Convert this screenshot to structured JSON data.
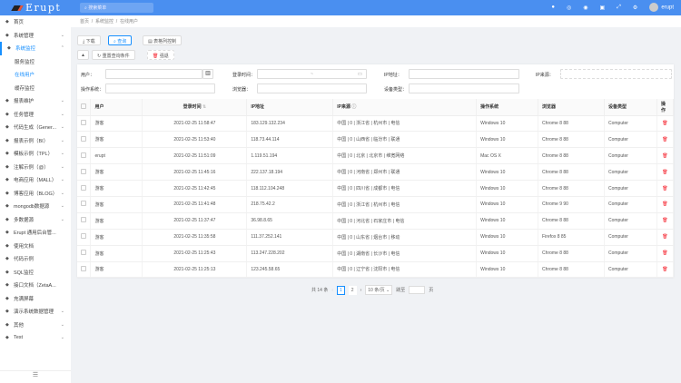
{
  "header": {
    "logo": "Erupt",
    "search_placeholder": "搜索菜单",
    "icons": [
      "qq-icon",
      "github-icon",
      "gitee-icon",
      "video-icon",
      "fullscreen-icon",
      "settings-icon"
    ],
    "user": "erupt"
  },
  "sidebar": {
    "items": [
      {
        "label": "首页",
        "icon": "home-icon",
        "arrow": false
      },
      {
        "label": "系统管理",
        "icon": "cogs-icon",
        "arrow": true
      },
      {
        "label": "系统监控",
        "icon": "monitor-icon",
        "arrow": true,
        "open": true
      },
      {
        "label": "服务监控",
        "sub": true
      },
      {
        "label": "在线用户",
        "sub": true,
        "current": true
      },
      {
        "label": "缓存监控",
        "sub": true
      },
      {
        "label": "报表维护",
        "icon": "table-icon",
        "arrow": true
      },
      {
        "label": "任务管理",
        "icon": "tasks-icon",
        "arrow": true
      },
      {
        "label": "代码生成（Gener...",
        "icon": "code-icon",
        "arrow": true
      },
      {
        "label": "报表示例（BI）",
        "icon": "chart-icon",
        "arrow": true
      },
      {
        "label": "模板示例（TPL）",
        "icon": "template-icon",
        "arrow": true
      },
      {
        "label": "注解示例（@）",
        "icon": "rocket-icon",
        "arrow": true
      },
      {
        "label": "电商应用（MALL）",
        "icon": "shop-icon",
        "arrow": true
      },
      {
        "label": "博客应用（BLOG）",
        "icon": "blog-icon",
        "arrow": true
      },
      {
        "label": "mongodb数据源",
        "icon": "leaf-icon",
        "arrow": true
      },
      {
        "label": "多数据源",
        "icon": "database-icon",
        "arrow": true
      },
      {
        "label": "Erupt 通用后台管...",
        "icon": "flask-icon",
        "arrow": false
      },
      {
        "label": "使用文档",
        "icon": "doc-icon",
        "arrow": false
      },
      {
        "label": "代码示例",
        "icon": "heart-icon",
        "arrow": false
      },
      {
        "label": "SQL监控",
        "icon": "search-icon",
        "arrow": false
      },
      {
        "label": "接口文档（ZetaA...",
        "icon": "api-icon",
        "arrow": false
      },
      {
        "label": "充满屏幕",
        "icon": "screen-icon",
        "arrow": false
      },
      {
        "label": "演示系统数据管理",
        "icon": "data-icon",
        "arrow": true
      },
      {
        "label": "其他",
        "icon": "circle-icon",
        "arrow": true
      },
      {
        "label": "Test",
        "icon": "test-icon",
        "arrow": true
      }
    ]
  },
  "breadcrumb": [
    "首页",
    "系统监控",
    "在线用户"
  ],
  "toolbar": {
    "download": "下载",
    "query": "查询",
    "columns": "表格列控制",
    "reset": "重置查询条件",
    "kick": "强退"
  },
  "filters": {
    "user": "用户：",
    "login_time": "登录时间：",
    "ip": "IP地址：",
    "ip_source": "IP来源：",
    "os": "操作系统：",
    "browser": "浏览器：",
    "device": "设备类型：",
    "range_sep": "~"
  },
  "table": {
    "headers": [
      "用户",
      "登录时间",
      "IP地址",
      "IP来源",
      "操作系统",
      "浏览器",
      "设备类型",
      "操作"
    ],
    "rows": [
      [
        "游客",
        "2021-02-25 11:58:47",
        "183.129.132.234",
        "中国 | 0 | 浙江省 | 杭州市 | 电信",
        "Windows 10",
        "Chrome 8 88",
        "Computer"
      ],
      [
        "游客",
        "2021-02-25 11:53:40",
        "118.73.44.114",
        "中国 | 0 | 山西省 | 临汾市 | 联通",
        "Windows 10",
        "Chrome 8 88",
        "Computer"
      ],
      [
        "erupt",
        "2021-02-25 11:51:09",
        "1.119.51.194",
        "中国 | 0 | 北京 | 北京市 | 维宽网络",
        "Mac OS X",
        "Chrome 8 88",
        "Computer"
      ],
      [
        "游客",
        "2021-02-25 11:45:16",
        "222.137.18.194",
        "中国 | 0 | 河南省 | 郑州市 | 联通",
        "Windows 10",
        "Chrome 8 88",
        "Computer"
      ],
      [
        "游客",
        "2021-02-25 11:42:45",
        "118.112.104.248",
        "中国 | 0 | 四川省 | 成都市 | 电信",
        "Windows 10",
        "Chrome 8 88",
        "Computer"
      ],
      [
        "游客",
        "2021-02-25 11:41:48",
        "218.75.42.2",
        "中国 | 0 | 浙江省 | 杭州市 | 电信",
        "Windows 10",
        "Chrome 9 90",
        "Computer"
      ],
      [
        "游客",
        "2021-02-25 11:37:47",
        "36.98.8.65",
        "中国 | 0 | 河北省 | 石家庄市 | 电信",
        "Windows 10",
        "Chrome 8 88",
        "Computer"
      ],
      [
        "游客",
        "2021-02-25 11:35:58",
        "111.37.252.141",
        "中国 | 0 | 山东省 | 烟台市 | 移动",
        "Windows 10",
        "Firefox 8 85",
        "Computer"
      ],
      [
        "游客",
        "2021-02-25 11:25:43",
        "113.247.228.202",
        "中国 | 0 | 湖南省 | 长沙市 | 电信",
        "Windows 10",
        "Chrome 8 88",
        "Computer"
      ],
      [
        "游客",
        "2021-02-25 11:25:13",
        "123.245.58.65",
        "中国 | 0 | 辽宁省 | 沈阳市 | 电信",
        "Windows 10",
        "Chrome 8 88",
        "Computer"
      ]
    ]
  },
  "pagination": {
    "total": "共 14 条",
    "pages": [
      "1",
      "2"
    ],
    "current": "1",
    "page_size": "10 条/页",
    "goto": "跳至",
    "page_unit": "页"
  },
  "colors": {
    "header": "#4a8ff0",
    "accent": "#1890ff",
    "danger": "#f5222d"
  }
}
